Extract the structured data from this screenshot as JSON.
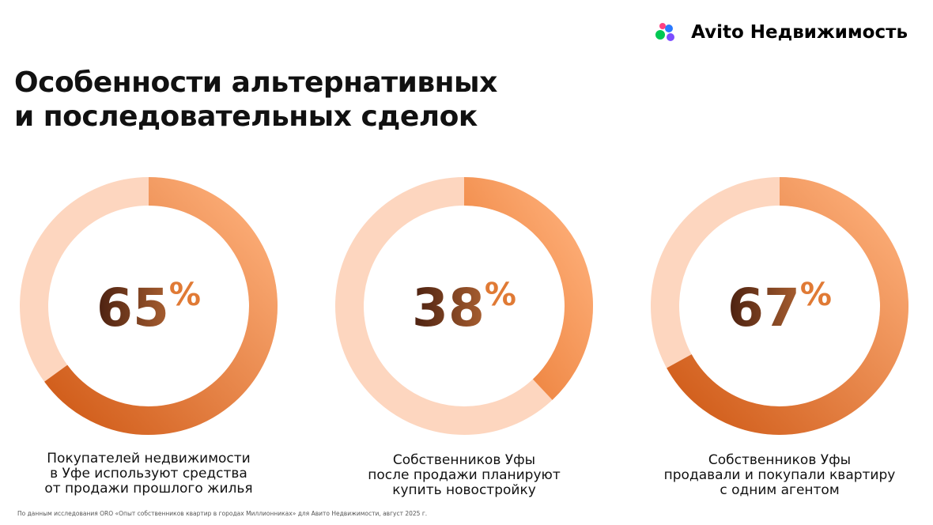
{
  "header": {
    "logo": "Avito Недвижимость",
    "title": [
      "Особенности альтернативных",
      "и последовательных сделок"
    ]
  },
  "chart_data": [
    {
      "type": "donut",
      "values": [
        65
      ],
      "value_labels": [
        "65%"
      ],
      "colors": [
        "#cf5a17",
        "#ffb27d"
      ],
      "track_color": "#fdd6bf",
      "caption": [
        "Покупателей недвижимости",
        "в Уфе используют средства",
        "от продажи прошлого жилья"
      ]
    },
    {
      "type": "donut",
      "values": [
        38
      ],
      "value_labels": [
        "38%"
      ],
      "colors": [
        "#e8752c",
        "#ffb27d"
      ],
      "track_color": "#fdd6bf",
      "caption": [
        "Собственников Уфы",
        "после продажи планируют",
        "купить новостройку"
      ]
    },
    {
      "type": "donut",
      "values": [
        67
      ],
      "value_labels": [
        "67%"
      ],
      "colors": [
        "#cf5a17",
        "#ffb27d"
      ],
      "track_color": "#fdd6bf",
      "caption": [
        "Собственников Уфы",
        "продавали и покупали квартиру",
        "с одним агентом"
      ]
    }
  ],
  "footnote": "По данным исследования ORO «Опыт собственников квартир в городах Миллионниках» для Авито Недвижимости, август 2025 г."
}
